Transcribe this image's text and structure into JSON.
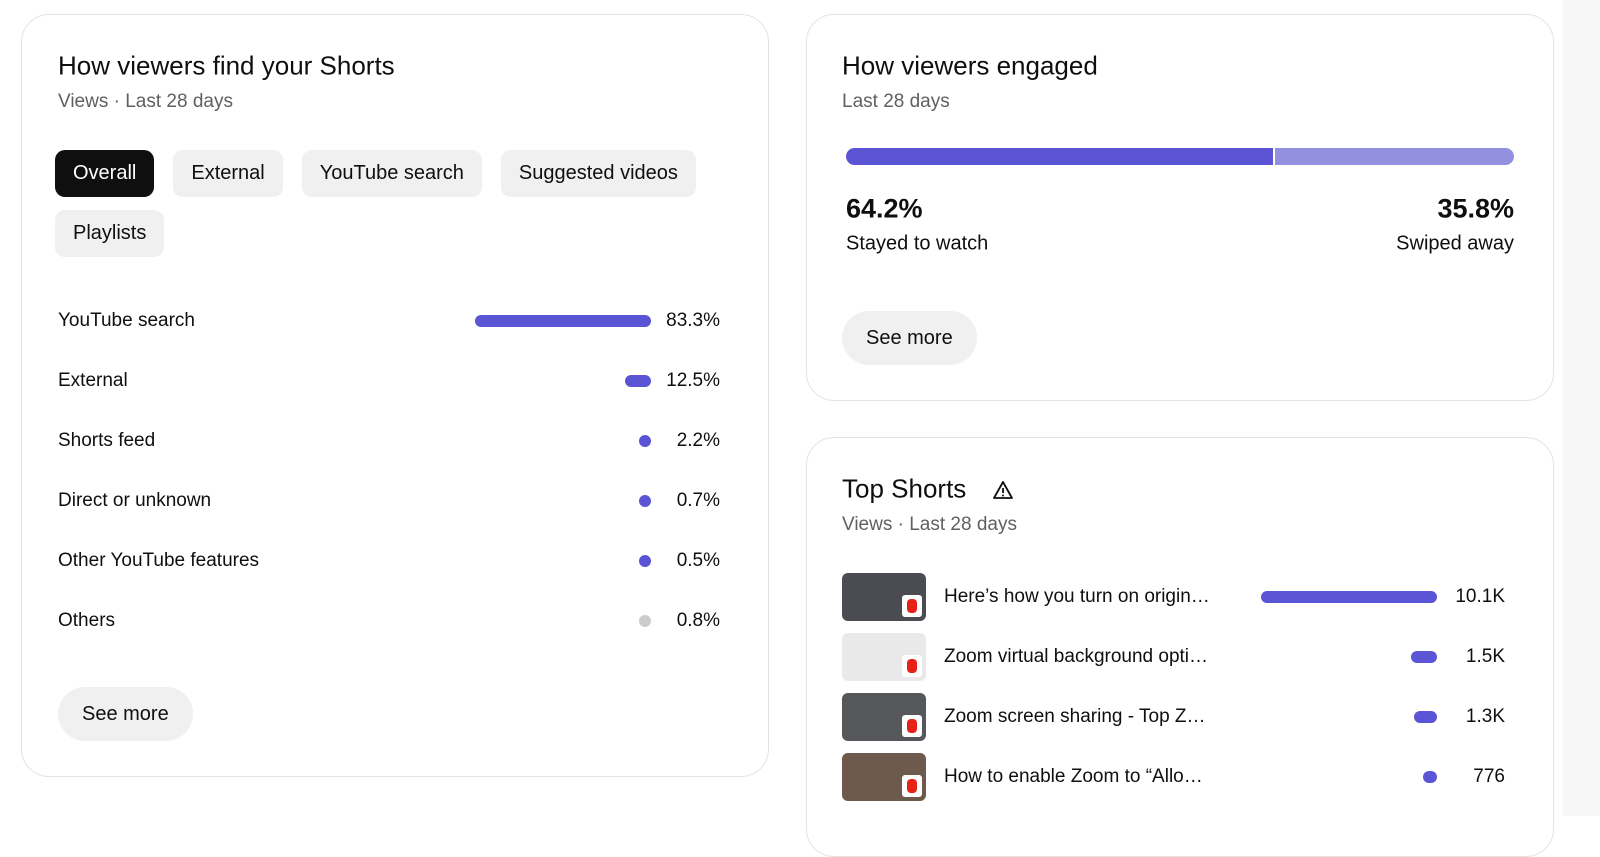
{
  "traffic": {
    "title": "How viewers find your Shorts",
    "subtitle": "Views · Last 28 days",
    "chips": [
      "Overall",
      "External",
      "YouTube search",
      "Suggested videos",
      "Playlists"
    ],
    "rows": [
      {
        "label": "YouTube search",
        "value": 83.3,
        "value_label": "83.3%",
        "color": "#5b55d6"
      },
      {
        "label": "External",
        "value": 12.5,
        "value_label": "12.5%",
        "color": "#5b55d6"
      },
      {
        "label": "Shorts feed",
        "value": 2.2,
        "value_label": "2.2%",
        "color": "#5b55d6"
      },
      {
        "label": "Direct or unknown",
        "value": 0.7,
        "value_label": "0.7%",
        "color": "#5b55d6"
      },
      {
        "label": "Other YouTube features",
        "value": 0.5,
        "value_label": "0.5%",
        "color": "#5b55d6"
      },
      {
        "label": "Others",
        "value": 0.8,
        "value_label": "0.8%",
        "color": "#cccccc"
      }
    ],
    "see_more": "See more"
  },
  "engagement": {
    "title": "How viewers engaged",
    "subtitle": "Last 28 days",
    "segments": [
      {
        "label": "Stayed to watch",
        "value": 64.2,
        "value_label": "64.2%",
        "color": "#5b55d6"
      },
      {
        "label": "Swiped away",
        "value": 35.8,
        "value_label": "35.8%",
        "color": "#9490e0"
      }
    ],
    "see_more": "See more"
  },
  "top_shorts": {
    "title": "Top Shorts",
    "subtitle": "Views · Last 28 days",
    "items": [
      {
        "title": "Here’s how you turn on origin…",
        "value": 10100,
        "value_label": "10.1K",
        "color": "#5b55d6"
      },
      {
        "title": "Zoom virtual background opti…",
        "value": 1500,
        "value_label": "1.5K",
        "color": "#5b55d6"
      },
      {
        "title": "Zoom screen sharing - Top Z…",
        "value": 1300,
        "value_label": "1.3K",
        "color": "#5b55d6"
      },
      {
        "title": "How to enable Zoom to “Allo…",
        "value": 776,
        "value_label": "776",
        "color": "#5b55d6"
      }
    ]
  }
}
